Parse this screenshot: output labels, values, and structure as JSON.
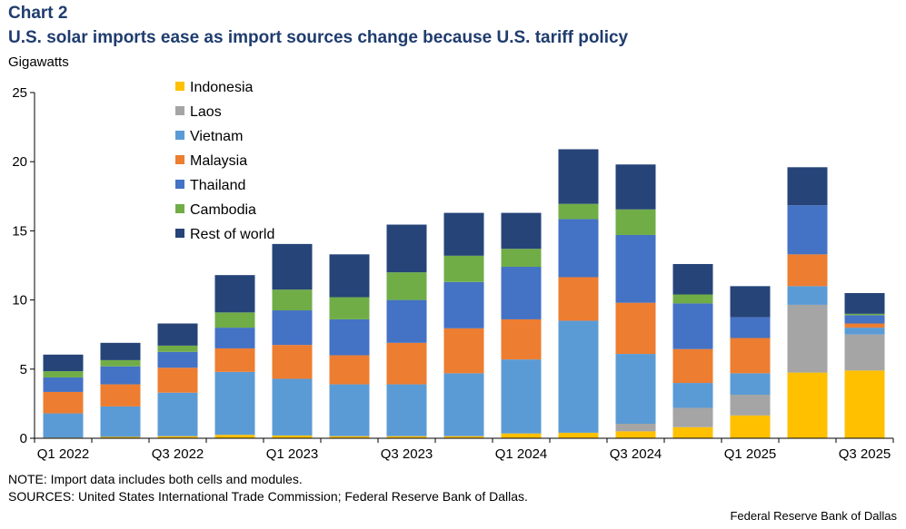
{
  "header": {
    "chart_number": "Chart 2",
    "title": "U.S. solar imports ease as import sources change because U.S. tariff policy",
    "units": "Gigawatts"
  },
  "footer": {
    "note": "NOTE: Import data includes both cells and modules.",
    "sources": "SOURCES: United States International Trade Commission; Federal Reserve Bank of Dallas.",
    "credit": "Federal Reserve Bank of Dallas"
  },
  "chart_data": {
    "type": "bar",
    "stacked": true,
    "title": "U.S. solar imports ease as import sources change because U.S. tariff policy",
    "ylabel": "Gigawatts",
    "ylim": [
      0,
      25
    ],
    "yticks": [
      0,
      5,
      10,
      15,
      20,
      25
    ],
    "legend_position": "top-left",
    "categories": [
      "Q1 2022",
      "Q2 2022",
      "Q3 2022",
      "Q4 2022",
      "Q1 2023",
      "Q2 2023",
      "Q3 2023",
      "Q4 2023",
      "Q1 2024",
      "Q2 2024",
      "Q3 2024",
      "Q4 2024",
      "Q1 2025",
      "Q2 2025",
      "Q3 2025"
    ],
    "tick_labels": [
      "Q1 2022",
      "",
      "Q3 2022",
      "",
      "Q1 2023",
      "",
      "Q3 2023",
      "",
      "Q1 2024",
      "",
      "Q3 2024",
      "",
      "Q1 2025",
      "",
      "Q3 2025"
    ],
    "series": [
      {
        "name": "Indonesia",
        "color": "#ffc000",
        "values": [
          0.05,
          0.1,
          0.15,
          0.25,
          0.2,
          0.15,
          0.15,
          0.15,
          0.35,
          0.4,
          0.5,
          0.8,
          1.65,
          4.75,
          4.9
        ]
      },
      {
        "name": "Laos",
        "color": "#a5a5a5",
        "values": [
          0.0,
          0.0,
          0.0,
          0.0,
          0.0,
          0.0,
          0.0,
          0.0,
          0.0,
          0.0,
          0.55,
          1.4,
          1.5,
          4.9,
          2.6
        ]
      },
      {
        "name": "Vietnam",
        "color": "#5b9bd5",
        "values": [
          1.75,
          2.2,
          3.15,
          4.55,
          4.1,
          3.75,
          3.75,
          4.55,
          5.35,
          8.1,
          5.05,
          1.8,
          1.55,
          1.35,
          0.5
        ]
      },
      {
        "name": "Malaysia",
        "color": "#ed7d31",
        "values": [
          1.55,
          1.6,
          1.8,
          1.7,
          2.45,
          2.1,
          3.0,
          3.25,
          2.9,
          3.15,
          3.7,
          2.45,
          2.55,
          2.3,
          0.3
        ]
      },
      {
        "name": "Thailand",
        "color": "#4472c4",
        "values": [
          1.05,
          1.3,
          1.15,
          1.5,
          2.5,
          2.6,
          3.1,
          3.35,
          3.8,
          4.2,
          4.9,
          3.3,
          1.5,
          3.55,
          0.6
        ]
      },
      {
        "name": "Cambodia",
        "color": "#70ad47",
        "values": [
          0.45,
          0.45,
          0.45,
          1.1,
          1.5,
          1.6,
          2.0,
          1.9,
          1.3,
          1.1,
          1.85,
          0.65,
          0.0,
          0.0,
          0.1
        ]
      },
      {
        "name": "Rest of world",
        "color": "#264478",
        "values": [
          1.2,
          1.25,
          1.6,
          2.7,
          3.3,
          3.1,
          3.45,
          3.1,
          2.6,
          3.95,
          3.25,
          2.2,
          2.25,
          2.75,
          1.5
        ]
      }
    ]
  }
}
